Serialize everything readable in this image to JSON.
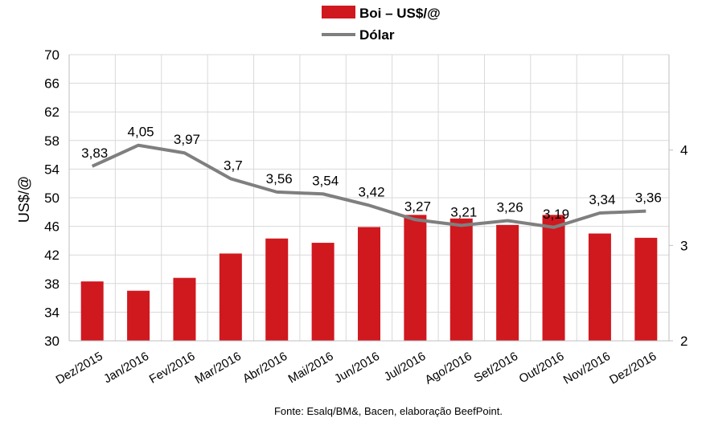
{
  "chart_data": {
    "type": "bar+line",
    "categories": [
      "Dez/2015",
      "Jan/2016",
      "Fev/2016",
      "Mar/2016",
      "Abr/2016",
      "Mai/2016",
      "Jun/2016",
      "Jul/2016",
      "Ago/2016",
      "Set/2016",
      "Out/2016",
      "Nov/2016",
      "Dez/2016"
    ],
    "series": [
      {
        "name": "Boi – US$/@",
        "type": "bar",
        "axis": "left",
        "color": "#d0181f",
        "values": [
          38.3,
          37.0,
          38.8,
          42.2,
          44.3,
          43.7,
          45.9,
          47.6,
          47.1,
          46.2,
          47.6,
          45.0,
          44.4
        ]
      },
      {
        "name": "Dólar",
        "type": "line",
        "axis": "right",
        "color": "#7f7f7f",
        "values": [
          3.83,
          4.05,
          3.97,
          3.7,
          3.56,
          3.54,
          3.42,
          3.27,
          3.21,
          3.26,
          3.19,
          3.34,
          3.36
        ],
        "labels": [
          "3,83",
          "4,05",
          "3,97",
          "3,7",
          "3,56",
          "3,54",
          "3,42",
          "3,27",
          "3,21",
          "3,26",
          "3,19",
          "3,34",
          "3,36"
        ]
      }
    ],
    "ylabel": "US$/@",
    "ylim": [
      30,
      70
    ],
    "yticks": [
      "30",
      "34",
      "38",
      "42",
      "46",
      "50",
      "54",
      "58",
      "62",
      "66",
      "70"
    ],
    "y2lim": [
      2,
      5
    ],
    "y2ticks": [
      "2",
      "3",
      "4"
    ],
    "grid": true,
    "legend_position": "top-center"
  },
  "source_note": "Fonte: Esalq/BM&, Bacen, elaboração BeefPoint."
}
